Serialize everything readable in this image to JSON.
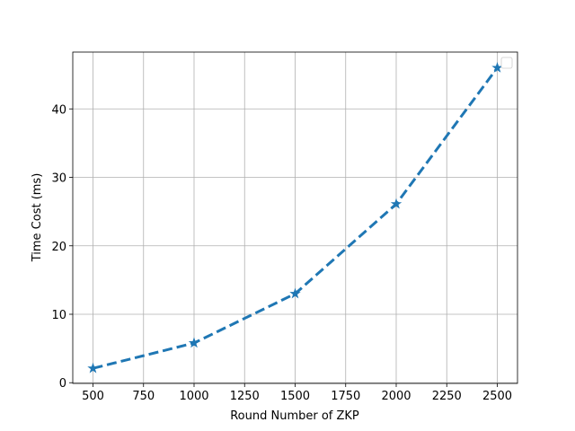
{
  "chart_data": {
    "type": "line",
    "x": [
      500,
      1000,
      1500,
      2000,
      2500
    ],
    "series": [
      {
        "color": "#1f77b4",
        "values": [
          2.1,
          5.8,
          13.0,
          26.1,
          46.0
        ]
      }
    ],
    "xlabel": "Round Number of ZKP",
    "ylabel": "Time Cost (ms)",
    "xlim": [
      400,
      2600
    ],
    "ylim": [
      -0.1,
      48.3
    ],
    "xticks": [
      500,
      750,
      1000,
      1250,
      1500,
      1750,
      2000,
      2250,
      2500
    ],
    "yticks": [
      0,
      10,
      20,
      30,
      40
    ],
    "grid": true,
    "legend": "upper right"
  }
}
